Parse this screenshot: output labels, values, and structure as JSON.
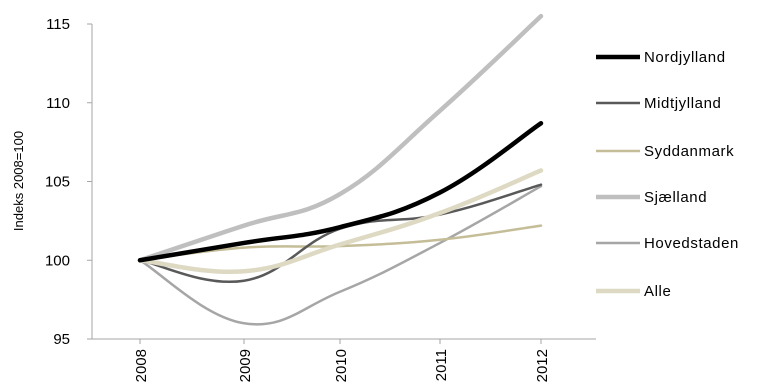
{
  "chart_data": {
    "type": "line",
    "title": "",
    "xlabel": "",
    "ylabel": "Indeks 2008=100",
    "categories": [
      "2008",
      "2009",
      "2010",
      "2011",
      "2012"
    ],
    "ylim": [
      95,
      115
    ],
    "yticks": [
      95,
      100,
      105,
      110,
      115
    ],
    "grid": false,
    "legend_position": "right",
    "series": [
      {
        "name": "Nordjylland",
        "values": [
          100,
          101.1,
          102.1,
          104.3,
          108.7
        ],
        "color": "#000000",
        "width": 4.5
      },
      {
        "name": "Midtjylland",
        "values": [
          100,
          98.7,
          102.0,
          102.9,
          104.8
        ],
        "color": "#595959",
        "width": 2.5
      },
      {
        "name": "Syddanmark",
        "values": [
          100,
          100.8,
          100.9,
          101.3,
          102.2
        ],
        "color": "#c4bd97",
        "width": 2.5
      },
      {
        "name": "Sjælland",
        "values": [
          100,
          102.2,
          104.2,
          109.5,
          115.5
        ],
        "color": "#bfbfbf",
        "width": 4.5
      },
      {
        "name": "Hovedstaden",
        "values": [
          100,
          96.0,
          98.0,
          101.1,
          104.7
        ],
        "color": "#a6a6a6",
        "width": 2.5
      },
      {
        "name": "Alle",
        "values": [
          100,
          99.3,
          101.0,
          103.0,
          105.7
        ],
        "color": "#ddd9c3",
        "width": 4.5
      }
    ]
  }
}
